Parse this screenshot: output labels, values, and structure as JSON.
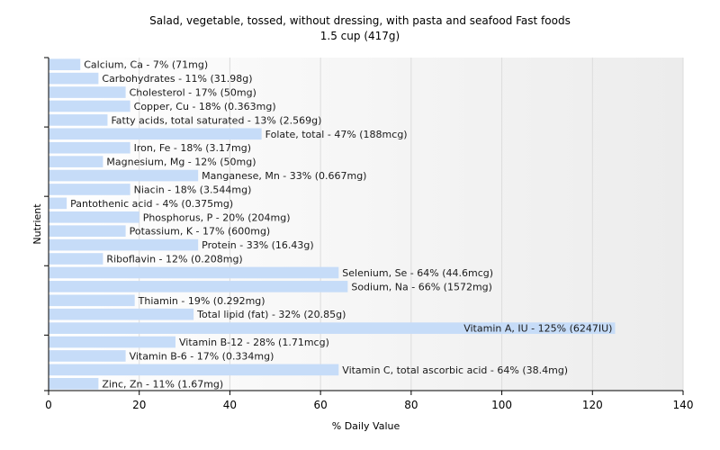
{
  "chart_data": {
    "type": "bar",
    "orientation": "horizontal",
    "title": "Salad, vegetable, tossed, without dressing, with pasta and seafood Fast foods",
    "subtitle": "1.5 cup (417g)",
    "xlabel": "% Daily Value",
    "ylabel": "Nutrient",
    "xlim": [
      0,
      140
    ],
    "xticks": [
      0,
      20,
      40,
      60,
      80,
      100,
      120,
      140
    ],
    "grid": true,
    "bar_color": "#c6dcf8",
    "categories": [
      "Calcium, Ca",
      "Carbohydrates",
      "Cholesterol",
      "Copper, Cu",
      "Fatty acids, total saturated",
      "Folate, total",
      "Iron, Fe",
      "Magnesium, Mg",
      "Manganese, Mn",
      "Niacin",
      "Pantothenic acid",
      "Phosphorus, P",
      "Potassium, K",
      "Protein",
      "Riboflavin",
      "Selenium, Se",
      "Sodium, Na",
      "Thiamin",
      "Total lipid (fat)",
      "Vitamin A, IU",
      "Vitamin B-12",
      "Vitamin B-6",
      "Vitamin C, total ascorbic acid",
      "Zinc, Zn"
    ],
    "values": [
      7,
      11,
      17,
      18,
      13,
      47,
      18,
      12,
      33,
      18,
      4,
      20,
      17,
      33,
      12,
      64,
      66,
      19,
      32,
      125,
      28,
      17,
      64,
      11
    ],
    "labels": [
      "Calcium, Ca - 7% (71mg)",
      "Carbohydrates - 11% (31.98g)",
      "Cholesterol - 17% (50mg)",
      "Copper, Cu - 18% (0.363mg)",
      "Fatty acids, total saturated - 13% (2.569g)",
      "Folate, total - 47% (188mcg)",
      "Iron, Fe - 18% (3.17mg)",
      "Magnesium, Mg - 12% (50mg)",
      "Manganese, Mn - 33% (0.667mg)",
      "Niacin - 18% (3.544mg)",
      "Pantothenic acid - 4% (0.375mg)",
      "Phosphorus, P - 20% (204mg)",
      "Potassium, K - 17% (600mg)",
      "Protein - 33% (16.43g)",
      "Riboflavin - 12% (0.208mg)",
      "Selenium, Se - 64% (44.6mcg)",
      "Sodium, Na - 66% (1572mg)",
      "Thiamin - 19% (0.292mg)",
      "Total lipid (fat) - 32% (20.85g)",
      "Vitamin A, IU - 125% (6247IU)",
      "Vitamin B-12 - 28% (1.71mcg)",
      "Vitamin B-6 - 17% (0.334mg)",
      "Vitamin C, total ascorbic acid - 64% (38.4mg)",
      "Zinc, Zn - 11% (1.67mg)"
    ]
  }
}
